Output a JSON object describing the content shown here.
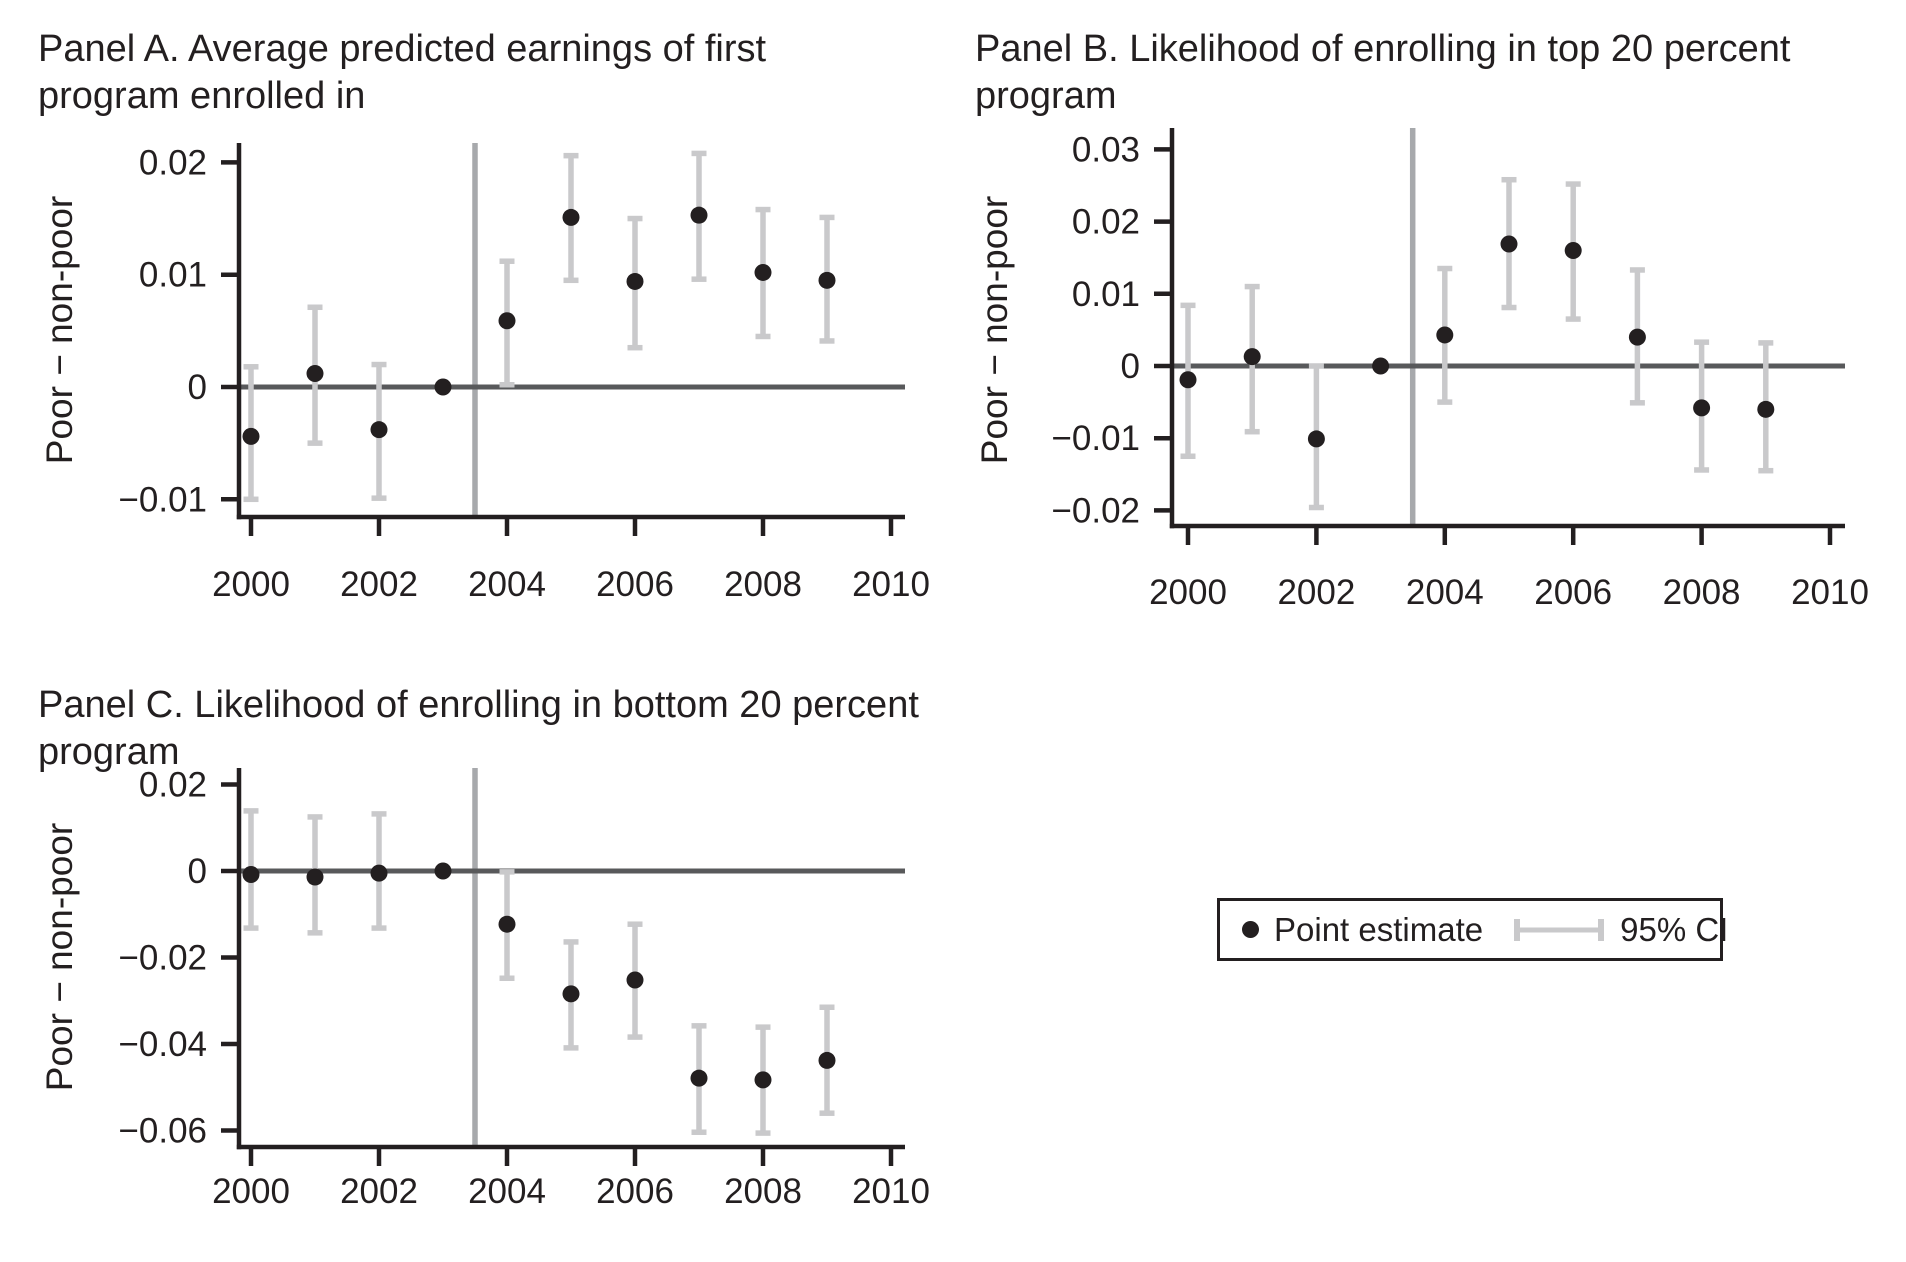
{
  "figure": {
    "legend": {
      "point_label": "Point estimate",
      "ci_label": "95% CI"
    },
    "colors": {
      "point": "#231f20",
      "ci": "#c9c9cb",
      "zero_line": "#58595b",
      "ref_line": "#a7a9ac",
      "axis": "#231f20",
      "text": "#231f20",
      "background": "#ffffff"
    }
  },
  "chart_data": [
    {
      "id": "panel-a",
      "type": "scatter",
      "title_line1": "Panel A. Average predicted earnings of first",
      "title_line2": "program enrolled in",
      "ylabel": "Poor − non-poor",
      "x": [
        2000,
        2001,
        2002,
        2003,
        2004,
        2005,
        2006,
        2007,
        2008,
        2009
      ],
      "series": [
        {
          "name": "Point estimate",
          "values": [
            -0.0044,
            0.0012,
            -0.0038,
            0.0,
            0.0059,
            0.0151,
            0.0094,
            0.0153,
            0.0102,
            0.0095
          ]
        },
        {
          "name": "95% CI lower",
          "values": [
            -0.01,
            -0.005,
            -0.0099,
            null,
            0.0002,
            0.0095,
            0.0035,
            0.0096,
            0.0045,
            0.0041
          ]
        },
        {
          "name": "95% CI upper",
          "values": [
            0.0018,
            0.0071,
            0.002,
            null,
            0.0112,
            0.0206,
            0.015,
            0.0208,
            0.0158,
            0.0151
          ]
        }
      ],
      "x_ticks": [
        2000,
        2002,
        2004,
        2006,
        2008,
        2010
      ],
      "x_tick_labels": [
        "2000",
        "2002",
        "2004",
        "2006",
        "2008",
        "2010"
      ],
      "y_ticks": [
        0.02,
        0.01,
        0,
        -0.01
      ],
      "y_tick_labels": [
        "0.02",
        "0.01",
        "0",
        "−0.01"
      ],
      "xlim": [
        1999.8,
        2010.2
      ],
      "ylim": [
        -0.0116,
        0.0217
      ],
      "ref_line_x": 2003.5,
      "zero_line": true,
      "grid": false
    },
    {
      "id": "panel-b",
      "type": "scatter",
      "title_line1": "Panel B. Likelihood of enrolling in top 20 percent",
      "title_line2": "program",
      "ylabel": "Poor − non-poor",
      "x": [
        2000,
        2001,
        2002,
        2003,
        2004,
        2005,
        2006,
        2007,
        2008,
        2009
      ],
      "series": [
        {
          "name": "Point estimate",
          "values": [
            -0.0019,
            0.0013,
            -0.0101,
            0.0,
            0.0043,
            0.0169,
            0.016,
            0.004,
            -0.0058,
            -0.006
          ]
        },
        {
          "name": "95% CI lower",
          "values": [
            -0.0125,
            -0.0091,
            -0.0196,
            null,
            -0.005,
            0.0081,
            0.0065,
            -0.0051,
            -0.0144,
            -0.0145
          ]
        },
        {
          "name": "95% CI upper",
          "values": [
            0.0084,
            0.011,
            0.0,
            null,
            0.0135,
            0.0258,
            0.0252,
            0.0133,
            0.0033,
            0.0032
          ]
        }
      ],
      "x_ticks": [
        2000,
        2002,
        2004,
        2006,
        2008,
        2010
      ],
      "x_tick_labels": [
        "2000",
        "2002",
        "2004",
        "2006",
        "2008",
        "2010"
      ],
      "y_ticks": [
        0.03,
        0.02,
        0.01,
        0,
        -0.01,
        -0.02
      ],
      "y_tick_labels": [
        "0.03",
        "0.02",
        "0.01",
        "0",
        "−0.01",
        "−0.02"
      ],
      "xlim": [
        1999.8,
        2010.3
      ],
      "ylim": [
        -0.0222,
        0.033
      ],
      "ref_line_x": 2003.5,
      "zero_line": true,
      "grid": false
    },
    {
      "id": "panel-c",
      "type": "scatter",
      "title_line1": "Panel C. Likelihood of enrolling in bottom 20 percent",
      "title_line2": "program",
      "ylabel": "Poor − non-poor",
      "x": [
        2000,
        2001,
        2002,
        2003,
        2004,
        2005,
        2006,
        2007,
        2008,
        2009
      ],
      "series": [
        {
          "name": "Point estimate",
          "values": [
            -0.0008,
            -0.0014,
            -0.0005,
            0.0,
            -0.0123,
            -0.0284,
            -0.0252,
            -0.0479,
            -0.0483,
            -0.0438
          ]
        },
        {
          "name": "95% CI lower",
          "values": [
            -0.0132,
            -0.0143,
            -0.0132,
            null,
            -0.0248,
            -0.0409,
            -0.0384,
            -0.0604,
            -0.0606,
            -0.056
          ]
        },
        {
          "name": "95% CI upper",
          "values": [
            0.0139,
            0.0125,
            0.0132,
            null,
            -0.0002,
            -0.0164,
            -0.0123,
            -0.0358,
            -0.0361,
            -0.0315
          ]
        }
      ],
      "x_ticks": [
        2000,
        2002,
        2004,
        2006,
        2008,
        2010
      ],
      "x_tick_labels": [
        "2000",
        "2002",
        "2004",
        "2006",
        "2008",
        "2010"
      ],
      "y_ticks": [
        0.02,
        0,
        -0.02,
        -0.04,
        -0.06
      ],
      "y_tick_labels": [
        "0.02",
        "0",
        "−0.02",
        "−0.04",
        "−0.06"
      ],
      "xlim": [
        1999.8,
        2010.2
      ],
      "ylim": [
        -0.066,
        0.024
      ],
      "ref_line_x": 2003.5,
      "zero_line": true,
      "grid": false
    }
  ]
}
